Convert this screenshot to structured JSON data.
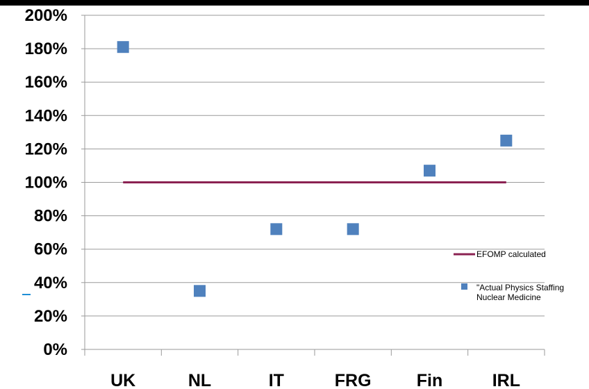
{
  "chart_data": {
    "type": "scatter",
    "categories": [
      "UK",
      "NL",
      "IT",
      "FRG",
      "Fin",
      "IRL"
    ],
    "y_ticks": [
      "0%",
      "20%",
      "40%",
      "60%",
      "80%",
      "100%",
      "120%",
      "140%",
      "160%",
      "180%",
      "200%"
    ],
    "ylim": [
      0,
      200
    ],
    "grid": true,
    "legend_position": "right",
    "series": [
      {
        "name": "EFOMP calculated",
        "kind": "line",
        "color": "#8b2252",
        "values": [
          100,
          100,
          100,
          100,
          100,
          100
        ]
      },
      {
        "name": "\"Actual Physics Staffing Nuclear Medicine",
        "legend_lines": [
          "\"Actual Physics Staffing",
          "Nuclear Medicine"
        ],
        "kind": "marker",
        "color": "#4f81bd",
        "values": [
          181,
          35,
          72,
          72,
          107,
          125
        ]
      }
    ]
  }
}
